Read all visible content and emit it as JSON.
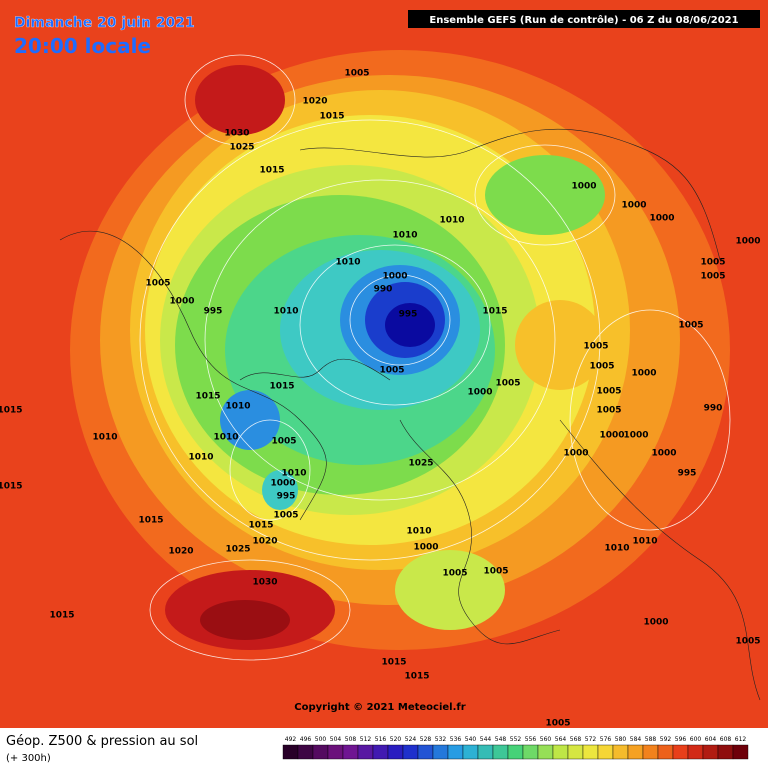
{
  "header": {
    "date": "Dimanche 20 juin 2021",
    "time": "20:00 locale",
    "run": "Ensemble GEFS  (Run de contrôle)  - 06 Z du 08/06/2021"
  },
  "copyright": "Copyright © 2021 Meteociel.fr",
  "footer": {
    "title": "Géop. Z500 & pression au sol",
    "lead": "(+ 300h)"
  },
  "scale": [
    492,
    496,
    500,
    504,
    508,
    512,
    516,
    520,
    524,
    528,
    532,
    536,
    540,
    544,
    548,
    552,
    556,
    560,
    564,
    568,
    572,
    576,
    580,
    584,
    588,
    592,
    596,
    600,
    604,
    608,
    612
  ],
  "isobars": [
    "1005",
    "1020",
    "1015",
    "1030",
    "1025",
    "1015",
    "1010",
    "1010",
    "1010",
    "1000",
    "990",
    "995",
    "1015",
    "1005",
    "1000",
    "995",
    "1010",
    "1005",
    "1015",
    "1015",
    "1000",
    "1005",
    "1010",
    "1010",
    "1005",
    "1010",
    "1010",
    "1025",
    "1010",
    "1000",
    "995",
    "1005",
    "1015",
    "1020",
    "1025",
    "1015",
    "1020",
    "1030",
    "1015",
    "1015",
    "1015",
    "1010",
    "1000",
    "1005",
    "1005",
    "1000",
    "1000",
    "1000",
    "1000",
    "1005",
    "1005",
    "1005",
    "1005",
    "1005",
    "1000",
    "1005",
    "1005",
    "990",
    "1000",
    "1000",
    "1000",
    "1000",
    "995",
    "1010",
    "1010",
    "1000",
    "1005",
    "1015",
    "1015",
    "1005"
  ]
}
